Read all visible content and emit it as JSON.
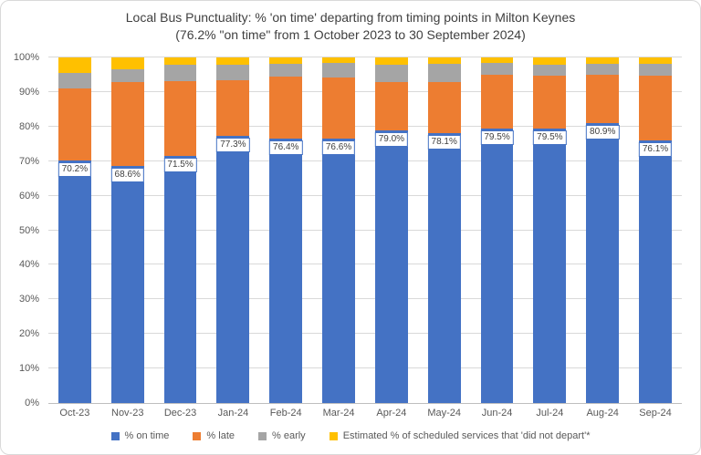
{
  "title": {
    "line1": "Local Bus Punctuality: % 'on time' departing from timing points in Milton Keynes",
    "line2": "(76.2% \"on time\" from 1 October 2023 to 30 September 2024)"
  },
  "chart_data": {
    "type": "bar",
    "stacked": true,
    "categories": [
      "Oct-23",
      "Nov-23",
      "Dec-23",
      "Jan-24",
      "Feb-24",
      "Mar-24",
      "Apr-24",
      "May-24",
      "Jun-24",
      "Jul-24",
      "Aug-24",
      "Sep-24"
    ],
    "series": [
      {
        "name": "% on time",
        "color": "#4472C4",
        "values": [
          70.2,
          68.6,
          71.5,
          77.3,
          76.4,
          76.6,
          79.0,
          78.1,
          79.5,
          79.5,
          80.9,
          76.1
        ]
      },
      {
        "name": "% late",
        "color": "#ED7D31",
        "values": [
          20.8,
          24.2,
          21.7,
          16.1,
          18.0,
          17.5,
          13.8,
          14.9,
          15.5,
          15.1,
          14.1,
          18.5
        ]
      },
      {
        "name": "% early",
        "color": "#A5A5A5",
        "values": [
          4.6,
          3.8,
          4.8,
          4.6,
          3.8,
          4.3,
          5.2,
          5.2,
          3.4,
          3.4,
          3.2,
          3.5
        ]
      },
      {
        "name": "Estimated % of scheduled services that 'did not depart'*",
        "color": "#FFC000",
        "values": [
          4.4,
          3.4,
          2.0,
          2.0,
          1.8,
          1.6,
          2.0,
          1.8,
          1.6,
          2.0,
          1.8,
          1.9
        ]
      }
    ],
    "data_labels": [
      "70.2%",
      "68.6%",
      "71.5%",
      "77.3%",
      "76.4%",
      "76.6%",
      "79.0%",
      "78.1%",
      "79.5%",
      "79.5%",
      "80.9%",
      "76.1%"
    ],
    "data_label_series": "% on time",
    "title": "Local Bus Punctuality: % 'on time' departing from timing points in Milton Keynes (76.2% \"on time\" from 1 October 2023 to 30 September 2024)",
    "xlabel": "",
    "ylabel": "",
    "ylim": [
      0,
      100
    ],
    "yticks": [
      "0%",
      "10%",
      "20%",
      "30%",
      "40%",
      "50%",
      "60%",
      "70%",
      "80%",
      "90%",
      "100%"
    ],
    "grid": "horizontal",
    "legend_position": "bottom",
    "colors": {
      "on_time": "#4472C4",
      "late": "#ED7D31",
      "early": "#A5A5A5",
      "did_not_depart": "#FFC000",
      "gridline": "#D9D9D9",
      "axis_text": "#595959",
      "title_text": "#404040",
      "label_box_border": "#4472C4"
    }
  }
}
